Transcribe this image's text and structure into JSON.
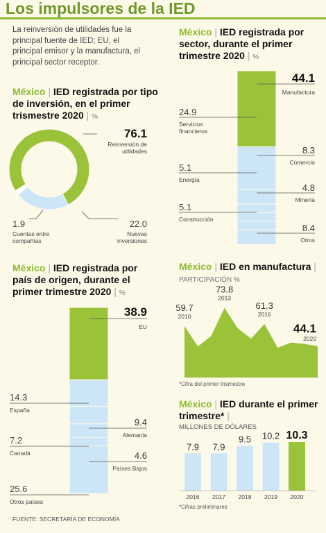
{
  "header": {
    "title": "Los impulsores de la IED",
    "intro": "La reinversión de utilidades fue la principal fuente de IED; EU, el principal emisor y la manufactura, el principal sector receptor."
  },
  "source": "FUENTE: SECRETARÍA DE ECONOMÍA",
  "charts": {
    "tipo": {
      "country": "México",
      "title": "IED registrada por tipo de inversión, en el primer trismestre 2020",
      "unit": "%"
    },
    "sector": {
      "country": "México",
      "title": "IED registrada por sector, durante el primer trimestre 2020",
      "unit": "%"
    },
    "pais": {
      "country": "México",
      "title": "IED registrada por país de origen, durante el primer trimestre 2020",
      "unit": "%"
    },
    "manufactura": {
      "country": "México",
      "title": "IED en manufactura",
      "unit": "PARTICIPACIÓN %",
      "note": "*Cifra del primer trismestre"
    },
    "anual": {
      "country": "México",
      "title": "IED durante el primer trimestre*",
      "unit": "MILLONES DE DÓLARES",
      "note": "*Cifras preliminares"
    }
  },
  "chart_data": [
    {
      "id": "tipo",
      "type": "pie",
      "categories": [
        "Reinversión de utilidades",
        "Nuevas inversiones",
        "Cuentas entre compañías"
      ],
      "values": [
        76.1,
        22.0,
        1.9
      ],
      "labels": [
        "76.1",
        "22.0",
        "1.9"
      ],
      "colors": [
        "#9bc33a",
        "#cde6f7",
        "#ffffff"
      ]
    },
    {
      "id": "sector",
      "type": "bar",
      "stacked": true,
      "categories": [
        "Manufactura",
        "Servicios financieros",
        "Comercio",
        "Energía",
        "Minería",
        "Construcción",
        "Otros"
      ],
      "values": [
        44.1,
        24.9,
        8.3,
        5.1,
        4.8,
        5.1,
        8.4
      ],
      "labels": [
        "44.1",
        "24.9",
        "8.3",
        "5.1",
        "4.8",
        "5.1",
        "8.4"
      ]
    },
    {
      "id": "pais",
      "type": "bar",
      "stacked": true,
      "categories": [
        "EU",
        "España",
        "Alemania",
        "Canadá",
        "Países Bajos",
        "Otros países"
      ],
      "values": [
        38.9,
        14.3,
        9.4,
        7.2,
        4.6,
        25.6
      ],
      "labels": [
        "38.9",
        "14.3",
        "9.4",
        "7.2",
        "4.6",
        "25.6"
      ]
    },
    {
      "id": "manufactura",
      "type": "area",
      "x": [
        2010,
        2011,
        2012,
        2013,
        2014,
        2015,
        2016,
        2017,
        2018,
        2019,
        2020
      ],
      "y": [
        59.7,
        44,
        52,
        73.8,
        58,
        50,
        61.3,
        43,
        47,
        46,
        44.1
      ],
      "annotations": [
        {
          "x": 2010,
          "value": "59.7",
          "year": "2010"
        },
        {
          "x": 2013,
          "value": "73.8",
          "year": "2013"
        },
        {
          "x": 2016,
          "value": "61.3",
          "year": "2016"
        },
        {
          "x": 2020,
          "value": "44.1",
          "year": "2020"
        }
      ]
    },
    {
      "id": "anual",
      "type": "bar",
      "categories": [
        "2016",
        "2017",
        "2018",
        "2019",
        "2020"
      ],
      "values": [
        7.9,
        7.9,
        9.5,
        10.2,
        10.3
      ],
      "labels": [
        "7.9",
        "7.9",
        "9.5",
        "10.2",
        "10.3"
      ]
    }
  ],
  "colors": {
    "green": "#9bc33a",
    "lightblue": "#cde6f7",
    "title_green": "#6f9a2a"
  }
}
